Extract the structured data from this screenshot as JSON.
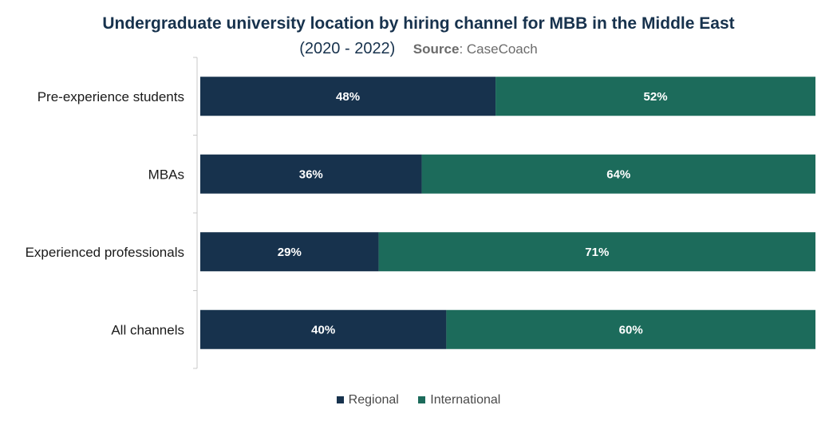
{
  "chart_data": {
    "type": "bar",
    "orientation": "horizontal",
    "stacked": true,
    "title": "Undergraduate university location by hiring channel for MBB in the Middle East",
    "subtitle": "(2020 - 2022)",
    "source_label": "Source",
    "source_text": ": CaseCoach",
    "categories": [
      "Pre-experience students",
      "MBAs",
      "Experienced professionals",
      "All channels"
    ],
    "series": [
      {
        "name": "Regional",
        "values": [
          48,
          36,
          29,
          40
        ],
        "labels": [
          "48%",
          "36%",
          "29%",
          "40%"
        ],
        "color": "#17324d"
      },
      {
        "name": "International",
        "values": [
          52,
          64,
          71,
          60
        ],
        "labels": [
          "52%",
          "64%",
          "71%",
          "60%"
        ],
        "color": "#1c6b5b"
      }
    ],
    "xlim": [
      0,
      100
    ],
    "unit": "%",
    "grid": false,
    "legend": "bottom"
  }
}
